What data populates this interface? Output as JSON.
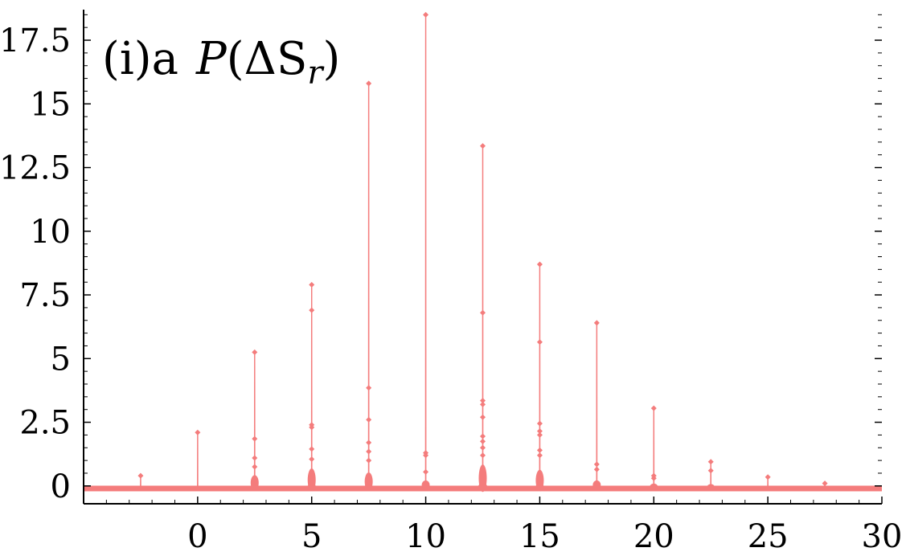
{
  "chart_data": {
    "type": "line",
    "title": "(i)a",
    "title_expr_p": "P",
    "title_expr_open": "(",
    "title_expr_delta": "ΔS",
    "title_expr_sub": "r",
    "title_expr_close": ")",
    "xlabel": "",
    "ylabel": "",
    "xlim": [
      -5,
      30
    ],
    "ylim": [
      -0.7,
      18.7
    ],
    "x_ticks": [
      0,
      5,
      10,
      15,
      20,
      25,
      30
    ],
    "x_tick_labels": [
      "0",
      "5",
      "10",
      "15",
      "20",
      "25",
      "30"
    ],
    "y_ticks": [
      0,
      2.5,
      5,
      7.5,
      10,
      12.5,
      15,
      17.5
    ],
    "y_tick_labels": [
      "0",
      "2.5",
      "5",
      "7.5",
      "10",
      "12.5",
      "15",
      "17.5"
    ],
    "grid": false,
    "series_color": "#f47c7c",
    "baseline": -0.1,
    "peaks": [
      {
        "x": -2.5,
        "y": 0.4,
        "shoulder": 0.0
      },
      {
        "x": 0,
        "y": 2.1,
        "shoulder": 0.0
      },
      {
        "x": 2.5,
        "y": 5.25,
        "shoulder": 0.5
      },
      {
        "x": 5,
        "y": 7.9,
        "shoulder": 0.75
      },
      {
        "x": 7.5,
        "y": 15.8,
        "shoulder": 0.6
      },
      {
        "x": 10,
        "y": 18.5,
        "shoulder": 0.3
      },
      {
        "x": 12.5,
        "y": 13.35,
        "shoulder": 0.9
      },
      {
        "x": 15,
        "y": 8.7,
        "shoulder": 0.7
      },
      {
        "x": 17.5,
        "y": 6.4,
        "shoulder": 0.3
      },
      {
        "x": 20,
        "y": 3.05,
        "shoulder": 0.15
      },
      {
        "x": 22.5,
        "y": 0.95,
        "shoulder": 0.1
      },
      {
        "x": 25,
        "y": 0.35,
        "shoulder": 0.0
      },
      {
        "x": 27.5,
        "y": 0.1,
        "shoulder": 0.0
      }
    ],
    "extra_points": [
      {
        "x": 2.5,
        "y": 1.85
      },
      {
        "x": 2.5,
        "y": 1.1
      },
      {
        "x": 2.5,
        "y": 0.75
      },
      {
        "x": 5,
        "y": 6.9
      },
      {
        "x": 5,
        "y": 2.4
      },
      {
        "x": 5,
        "y": 2.3
      },
      {
        "x": 5,
        "y": 1.45
      },
      {
        "x": 5,
        "y": 1.05
      },
      {
        "x": 7.5,
        "y": 3.85
      },
      {
        "x": 7.5,
        "y": 2.6
      },
      {
        "x": 7.5,
        "y": 1.7
      },
      {
        "x": 7.5,
        "y": 1.35
      },
      {
        "x": 7.5,
        "y": 1.0
      },
      {
        "x": 10,
        "y": 1.3
      },
      {
        "x": 10,
        "y": 1.2
      },
      {
        "x": 10,
        "y": 0.55
      },
      {
        "x": 12.5,
        "y": 6.8
      },
      {
        "x": 12.5,
        "y": 3.35
      },
      {
        "x": 12.5,
        "y": 3.2
      },
      {
        "x": 12.5,
        "y": 2.7
      },
      {
        "x": 12.5,
        "y": 1.95
      },
      {
        "x": 12.5,
        "y": 1.75
      },
      {
        "x": 12.5,
        "y": 1.5
      },
      {
        "x": 12.5,
        "y": 1.2
      },
      {
        "x": 15,
        "y": 5.65
      },
      {
        "x": 15,
        "y": 2.45
      },
      {
        "x": 15,
        "y": 2.15
      },
      {
        "x": 15,
        "y": 2.0
      },
      {
        "x": 15,
        "y": 1.4
      },
      {
        "x": 15,
        "y": 1.2
      },
      {
        "x": 17.5,
        "y": 0.85
      },
      {
        "x": 17.5,
        "y": 0.65
      },
      {
        "x": 20,
        "y": 0.4
      },
      {
        "x": 20,
        "y": 0.3
      },
      {
        "x": 22.5,
        "y": 0.6
      }
    ]
  }
}
